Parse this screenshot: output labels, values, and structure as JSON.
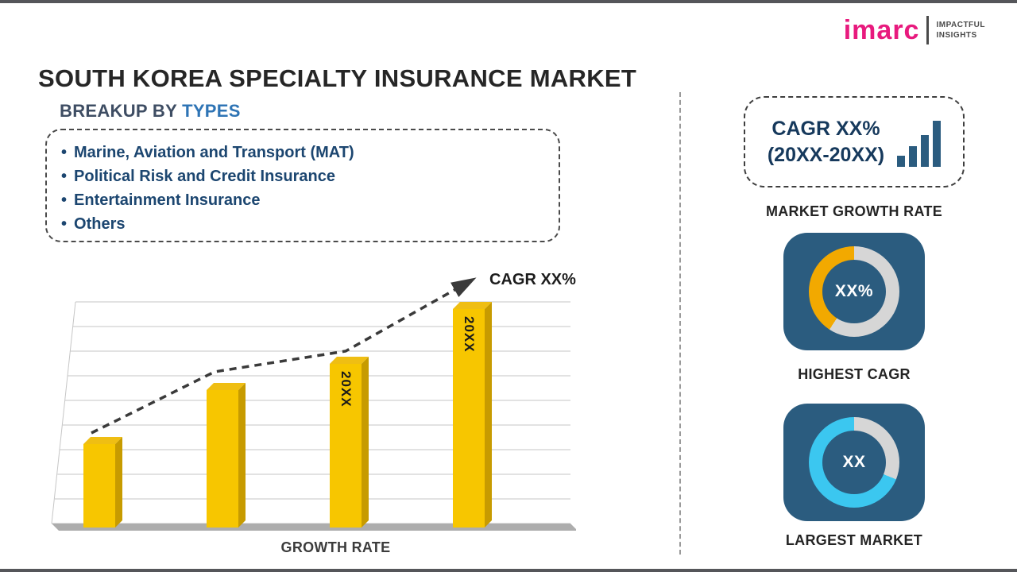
{
  "page": {
    "title": "SOUTH KOREA SPECIALTY INSURANCE MARKET"
  },
  "logo": {
    "brand": "imarc",
    "tagline1": "IMPACTFUL",
    "tagline2": "INSIGHTS"
  },
  "breakup": {
    "heading_prefix": "BREAKUP BY",
    "heading_highlight": "TYPES",
    "items": [
      "Marine, Aviation and Transport (MAT)",
      "Political Risk and Credit Insurance",
      "Entertainment Insurance",
      "Others"
    ]
  },
  "chart_data": {
    "type": "bar",
    "bar_labels": [
      "",
      "",
      "20XX",
      "20XX"
    ],
    "values": [
      38,
      63,
      75,
      100
    ],
    "trend_label": "CAGR XX%",
    "xlabel": "GROWTH RATE",
    "bar_color": "#F7C600",
    "trend_style": "dashed-arrow-up",
    "grid": true,
    "axis_values_shown": false
  },
  "sidebar": {
    "cagr_card": {
      "line1": "CAGR XX%",
      "line2": "(20XX-20XX)"
    },
    "market_growth_label": "MARKET GROWTH RATE",
    "highest_cagr": {
      "value": "XX%",
      "label": "HIGHEST CAGR",
      "accent_color": "#F2A900"
    },
    "largest_market": {
      "value": "XX",
      "label": "LARGEST MARKET",
      "accent_color": "#3BC7F0"
    }
  },
  "colors": {
    "brand_magenta": "#E81A7E",
    "navy_text": "#1C4670",
    "heading_blue": "#2E74B5",
    "bar_gold": "#F7C600",
    "panel_blue": "#2B5C7F",
    "ring_gray": "#D6D6D6",
    "frame_edge": "#55565A"
  }
}
